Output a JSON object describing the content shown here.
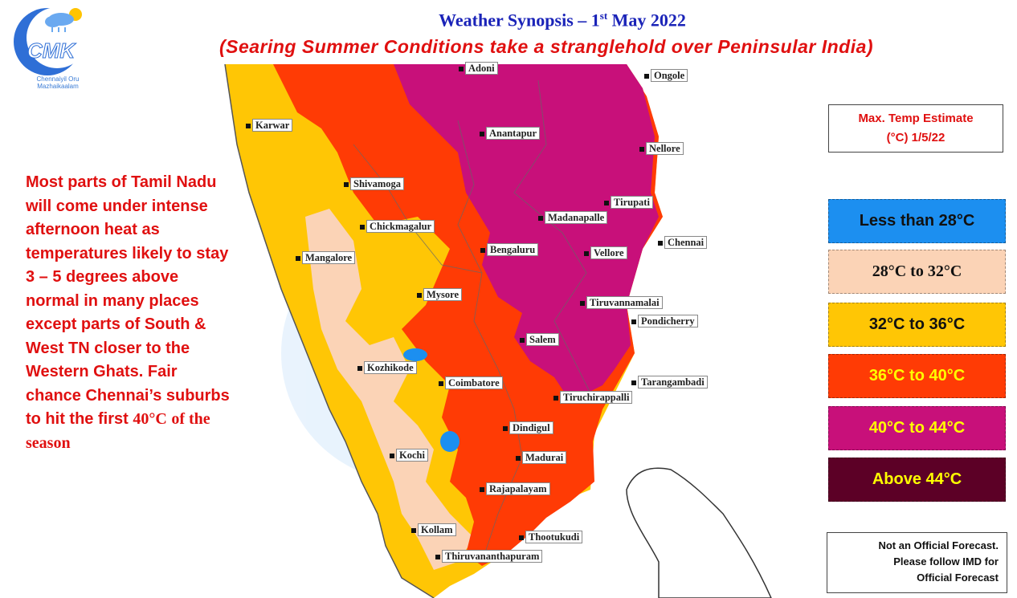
{
  "logo": {
    "brand": "CMK",
    "tagline": "Chennaiyil Oru Mazhaikaalam"
  },
  "title": {
    "main": "Weather Synopsis – 1",
    "sup": "st",
    "rest": " May 2022"
  },
  "subtitle": "(Searing Summer Conditions take a stranglehold over Peninsular India)",
  "description": {
    "sans_part": "Most parts of Tamil Nadu will come under intense afternoon heat as temperatures likely to stay 3 – 5 degrees above normal in many places except parts of South & West TN closer to the Western Ghats.  Fair chance Chennai’s suburbs to hit the first",
    "temp": "40°C",
    "serif_part": "of the season"
  },
  "legend": {
    "title_line1": "Max. Temp Estimate",
    "title_line2": "(°C) 1/5/22",
    "items": [
      {
        "label": "Less than 28°C",
        "color": "#1c8ff0",
        "text_color": "#111111"
      },
      {
        "label": "28°C to 32°C",
        "color": "#fbd3b6",
        "text_color": "#111111"
      },
      {
        "label": "32°C to 36°C",
        "color": "#ffc605",
        "text_color": "#111111"
      },
      {
        "label": "36°C to 40°C",
        "color": "#ff3b05",
        "text_color": "#ffff00"
      },
      {
        "label": "40°C to 44°C",
        "color": "#c8107a",
        "text_color": "#ffff00"
      },
      {
        "label": "Above 44°C",
        "color": "#5c0026",
        "text_color": "#ffff00"
      }
    ]
  },
  "disclaimer": {
    "line1": "Not an Official Forecast.",
    "line2": "Please follow IMD for",
    "line3": "Official Forecast"
  },
  "cities": [
    "Adoni",
    "Ongole",
    "Karwar",
    "Anantapur",
    "Nellore",
    "Shivamoga",
    "Tirupati",
    "Madanapalle",
    "Chickmagalur",
    "Chennai",
    "Bengaluru",
    "Vellore",
    "Mangalore",
    "Mysore",
    "Tiruvannamalai",
    "Pondicherry",
    "Salem",
    "Kozhikode",
    "Tarangambadi",
    "Coimbatore",
    "Tiruchirappalli",
    "Dindigul",
    "Kochi",
    "Madurai",
    "Rajapalayam",
    "Kollam",
    "Thootukudi",
    "Thiruvananthapuram"
  ]
}
